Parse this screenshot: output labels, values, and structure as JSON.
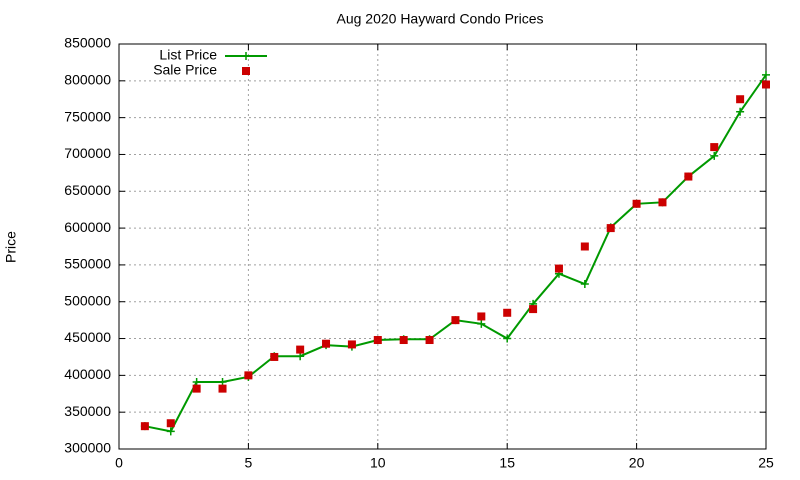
{
  "chart_data": {
    "type": "line",
    "title": "Aug 2020 Hayward Condo Prices",
    "y_label": "Price",
    "x": [
      1,
      2,
      3,
      4,
      5,
      6,
      7,
      8,
      9,
      10,
      11,
      12,
      13,
      14,
      15,
      16,
      17,
      18,
      19,
      20,
      21,
      22,
      23,
      24,
      25
    ],
    "series": [
      {
        "name": "List Price",
        "color": "#009900",
        "style": "linespoints",
        "values": [
          331000,
          324000,
          391000,
          391000,
          398000,
          426000,
          426000,
          441000,
          439000,
          448000,
          449000,
          449000,
          475000,
          470000,
          450000,
          497000,
          538000,
          524000,
          601000,
          633000,
          635000,
          670000,
          698000,
          758000,
          808000
        ]
      },
      {
        "name": "Sale Price",
        "color": "#cc0000",
        "style": "points",
        "values": [
          331000,
          335000,
          382000,
          382000,
          400000,
          425000,
          435000,
          443000,
          442000,
          448000,
          448000,
          448000,
          475000,
          480000,
          485000,
          490000,
          545000,
          575000,
          600000,
          633000,
          635000,
          670000,
          710000,
          775000,
          795000
        ]
      }
    ],
    "xlim": [
      0,
      25
    ],
    "xticks": [
      0,
      5,
      10,
      15,
      20,
      25
    ],
    "ylim": [
      300000,
      850000
    ],
    "yticks": [
      300000,
      350000,
      400000,
      450000,
      500000,
      550000,
      600000,
      650000,
      700000,
      750000,
      800000,
      850000
    ],
    "grid": true,
    "legend": "top-left"
  }
}
